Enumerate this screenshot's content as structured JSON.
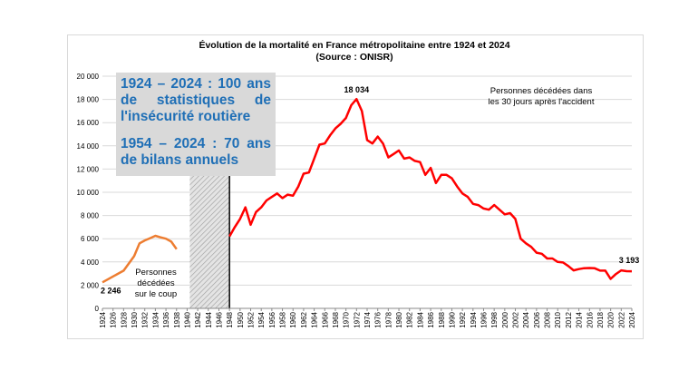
{
  "chart_data": {
    "type": "line",
    "title": "Évolution de la mortalité en France métropolitaine entre 1924 et 2024",
    "subtitle": "(Source : ONISR)",
    "xlabel": "",
    "ylabel": "",
    "xlim": [
      1924,
      2024
    ],
    "ylim": [
      0,
      20000
    ],
    "yticks": [
      0,
      2000,
      4000,
      6000,
      8000,
      10000,
      12000,
      14000,
      16000,
      18000,
      20000
    ],
    "ytick_labels": [
      "0",
      "2 000",
      "4 000",
      "6 000",
      "8 000",
      "10 000",
      "12 000",
      "14 000",
      "16 000",
      "18 000",
      "20 000"
    ],
    "xtick_labels": [
      "1924",
      "1926",
      "1928",
      "1930",
      "1932",
      "1934",
      "1936",
      "1938",
      "1940",
      "1942",
      "1944",
      "1946",
      "1948",
      "1950",
      "1952",
      "1954",
      "1956",
      "1958",
      "1960",
      "1962",
      "1964",
      "1966",
      "1968",
      "1970",
      "1972",
      "1974",
      "1976",
      "1978",
      "1980",
      "1982",
      "1984",
      "1986",
      "1988",
      "1990",
      "1992",
      "1994",
      "1996",
      "1998",
      "2000",
      "2002",
      "2004",
      "2006",
      "2008",
      "2010",
      "2012",
      "2014",
      "2016",
      "2018",
      "2020",
      "2022",
      "2024"
    ],
    "grid": true,
    "series": [
      {
        "name": "Personnes décédées sur le coup",
        "color": "#ed7d31",
        "x": [
          1924,
          1926,
          1928,
          1930,
          1931,
          1932,
          1933,
          1934,
          1935,
          1936,
          1937,
          1938
        ],
        "y": [
          2246,
          2750,
          3250,
          4500,
          5600,
          5850,
          6050,
          6250,
          6120,
          6000,
          5750,
          5100
        ]
      },
      {
        "name": "Personnes décédées dans les 30 jours après l'accident",
        "color": "#ff0000",
        "x": [
          1948,
          1949,
          1950,
          1951,
          1952,
          1953,
          1954,
          1955,
          1956,
          1957,
          1958,
          1959,
          1960,
          1961,
          1962,
          1963,
          1964,
          1965,
          1966,
          1967,
          1968,
          1969,
          1970,
          1971,
          1972,
          1973,
          1974,
          1975,
          1976,
          1977,
          1978,
          1979,
          1980,
          1981,
          1982,
          1983,
          1984,
          1985,
          1986,
          1987,
          1988,
          1989,
          1990,
          1991,
          1992,
          1993,
          1994,
          1995,
          1996,
          1997,
          1998,
          1999,
          2000,
          2001,
          2002,
          2003,
          2004,
          2005,
          2006,
          2007,
          2008,
          2009,
          2010,
          2011,
          2012,
          2013,
          2014,
          2015,
          2016,
          2017,
          2018,
          2019,
          2020,
          2021,
          2022,
          2023,
          2024
        ],
        "y": [
          6200,
          7000,
          7700,
          8700,
          7200,
          8300,
          8700,
          9300,
          9600,
          9900,
          9500,
          9800,
          9700,
          10500,
          11600,
          11700,
          12900,
          14100,
          14200,
          14900,
          15500,
          15900,
          16400,
          17500,
          18034,
          17000,
          14500,
          14200,
          14800,
          14200,
          13000,
          13300,
          13600,
          12900,
          13000,
          12700,
          12600,
          11500,
          12100,
          10800,
          11500,
          11500,
          11200,
          10500,
          9900,
          9600,
          9000,
          8900,
          8600,
          8500,
          8900,
          8500,
          8100,
          8200,
          7700,
          6000,
          5600,
          5300,
          4800,
          4700,
          4300,
          4300,
          4000,
          3950,
          3650,
          3270,
          3380,
          3460,
          3480,
          3450,
          3250,
          3250,
          2540,
          2960,
          3270,
          3200,
          3193
        ]
      }
    ],
    "annotations": [
      {
        "text": "2 246",
        "x": 1924,
        "y": 2246
      },
      {
        "text": "18 034",
        "x": 1972,
        "y": 18034
      },
      {
        "text": "3 193",
        "x": 2024,
        "y": 3193
      }
    ],
    "series_labels": {
      "orange_lines": [
        "Personnes",
        "décédées",
        "sur le coup"
      ],
      "red_lines": [
        "Personnes décédées dans",
        "les 30 jours après l'accident"
      ]
    },
    "gap": {
      "x_from": 1939,
      "x_to": 1948,
      "fill": "hatched"
    }
  },
  "callout": {
    "line1": "1924 – 2024 : 100 ans de statistiques de l'insécurité routière",
    "line2": "1954 – 2024 : 70 ans de bilans annuels",
    "color": "#1f6fb6"
  }
}
